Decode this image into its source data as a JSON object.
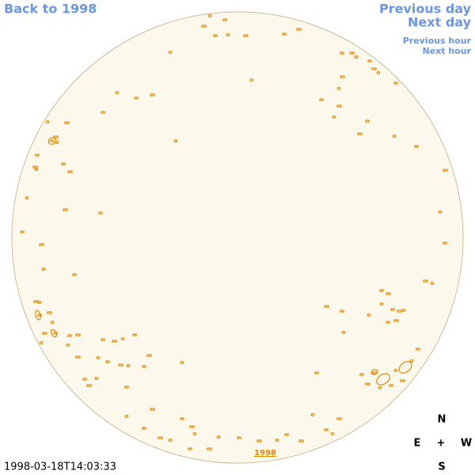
{
  "header": {
    "back_link": "Back to 1998",
    "previous_day": "Previous day",
    "next_day": "Next day",
    "previous_hour": "Previous hour",
    "next_hour": "Next hour"
  },
  "map": {
    "year_link": "1998",
    "timestamp": "1998-03-18T14:03:33"
  },
  "compass": {
    "north": "N",
    "east": "E",
    "center": "+",
    "west": "W",
    "south": "S"
  }
}
